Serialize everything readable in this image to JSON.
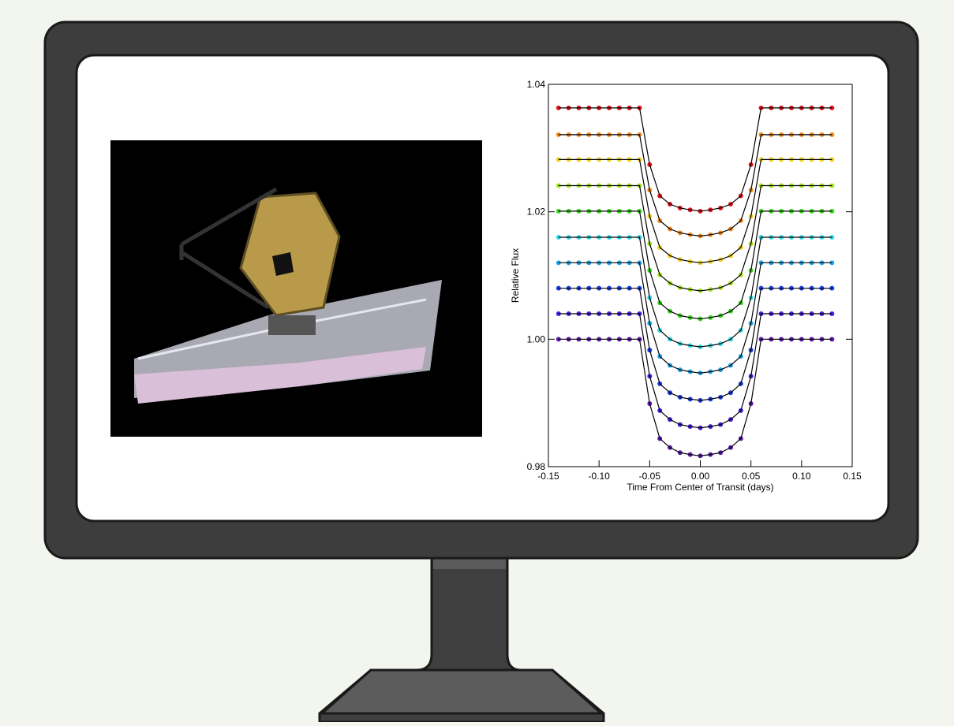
{
  "chart_data": {
    "type": "line",
    "xlabel": "Time From Center of Transit (days)",
    "ylabel": "Relative Flux",
    "xlim": [
      -0.15,
      0.15
    ],
    "ylim": [
      0.98,
      1.04
    ],
    "xticks": [
      -0.15,
      {
        "value": -0.1,
        "label": "-0.10"
      },
      -0.05,
      {
        "value": 0,
        "label": "0.00"
      },
      0.05,
      {
        "value": 0.1,
        "label": "0.10"
      },
      0.15
    ],
    "yticks": [
      0.98,
      {
        "value": 1,
        "label": "1.00"
      },
      1.02,
      1.04
    ],
    "x": [
      -0.14,
      -0.13,
      -0.12,
      -0.11,
      -0.1,
      -0.09,
      -0.08,
      -0.07,
      -0.06,
      -0.05,
      -0.04,
      -0.03,
      -0.02,
      -0.01,
      0,
      0.01,
      0.02,
      0.03,
      0.04,
      0.05,
      0.06,
      0.07,
      0.08,
      0.09,
      0.1,
      0.11,
      0.12,
      0.13
    ],
    "line_color": "#000000",
    "series": [
      {
        "color": "#e8141c",
        "values": [
          1.0363,
          1.0363,
          1.0363,
          1.0363,
          1.0363,
          1.0363,
          1.0363,
          1.0363,
          1.0363,
          1.0274,
          1.0225,
          1.0212,
          1.0206,
          1.0203,
          1.0201,
          1.0203,
          1.0206,
          1.0212,
          1.0225,
          1.0274,
          1.0363,
          1.0363,
          1.0363,
          1.0363,
          1.0363,
          1.0363,
          1.0363,
          1.0363
        ]
      },
      {
        "color": "#f28a1c",
        "values": [
          1.0321,
          1.0321,
          1.0321,
          1.0321,
          1.0321,
          1.0321,
          1.0321,
          1.0321,
          1.0321,
          1.0234,
          1.0186,
          1.0173,
          1.0167,
          1.0164,
          1.0162,
          1.0164,
          1.0167,
          1.0173,
          1.0186,
          1.0234,
          1.0321,
          1.0321,
          1.0321,
          1.0321,
          1.0321,
          1.0321,
          1.0321,
          1.0321
        ]
      },
      {
        "color": "#f2d21a",
        "values": [
          1.0282,
          1.0282,
          1.0282,
          1.0282,
          1.0282,
          1.0282,
          1.0282,
          1.0282,
          1.0282,
          1.0193,
          1.0144,
          1.0131,
          1.0125,
          1.0122,
          1.012,
          1.0122,
          1.0125,
          1.0131,
          1.0144,
          1.0193,
          1.0282,
          1.0282,
          1.0282,
          1.0282,
          1.0282,
          1.0282,
          1.0282,
          1.0282
        ]
      },
      {
        "color": "#a6e41a",
        "values": [
          1.0241,
          1.0241,
          1.0241,
          1.0241,
          1.0241,
          1.0241,
          1.0241,
          1.0241,
          1.0241,
          1.015,
          1.0101,
          1.0088,
          1.0081,
          1.0078,
          1.0076,
          1.0078,
          1.0081,
          1.0088,
          1.0101,
          1.015,
          1.0241,
          1.0241,
          1.0241,
          1.0241,
          1.0241,
          1.0241,
          1.0241,
          1.0241
        ]
      },
      {
        "color": "#3ad61c",
        "values": [
          1.0201,
          1.0201,
          1.0201,
          1.0201,
          1.0201,
          1.0201,
          1.0201,
          1.0201,
          1.0201,
          1.0108,
          1.0057,
          1.0044,
          1.0037,
          1.0034,
          1.0032,
          1.0034,
          1.0037,
          1.0044,
          1.0057,
          1.0108,
          1.0201,
          1.0201,
          1.0201,
          1.0201,
          1.0201,
          1.0201,
          1.0201,
          1.0201
        ]
      },
      {
        "color": "#2fd8e8",
        "values": [
          1.016,
          1.016,
          1.016,
          1.016,
          1.016,
          1.016,
          1.016,
          1.016,
          1.016,
          1.0065,
          1.0014,
          1.0,
          0.9993,
          0.999,
          0.9988,
          0.999,
          0.9993,
          1.0,
          1.0014,
          1.0065,
          1.016,
          1.016,
          1.016,
          1.016,
          1.016,
          1.016,
          1.016,
          1.016
        ]
      },
      {
        "color": "#1fa6e8",
        "values": [
          1.012,
          1.012,
          1.012,
          1.012,
          1.012,
          1.012,
          1.012,
          1.012,
          1.012,
          1.0025,
          0.9973,
          0.9959,
          0.9952,
          0.9949,
          0.9947,
          0.9949,
          0.9952,
          0.9959,
          0.9973,
          1.0025,
          1.012,
          1.012,
          1.012,
          1.012,
          1.012,
          1.012,
          1.012,
          1.012
        ]
      },
      {
        "color": "#1a3ee0",
        "values": [
          1.008,
          1.008,
          1.008,
          1.008,
          1.008,
          1.008,
          1.008,
          1.008,
          1.008,
          0.9983,
          0.993,
          0.9916,
          0.9909,
          0.9906,
          0.9904,
          0.9906,
          0.9909,
          0.9916,
          0.993,
          0.9983,
          1.008,
          1.008,
          1.008,
          1.008,
          1.008,
          1.008,
          1.008,
          1.008
        ]
      },
      {
        "color": "#4a1ee0",
        "values": [
          1.004,
          1.004,
          1.004,
          1.004,
          1.004,
          1.004,
          1.004,
          1.004,
          1.004,
          0.9942,
          0.9888,
          0.9874,
          0.9866,
          0.9863,
          0.9861,
          0.9863,
          0.9866,
          0.9874,
          0.9888,
          0.9942,
          1.004,
          1.004,
          1.004,
          1.004,
          1.004,
          1.004,
          1.004,
          1.004
        ]
      },
      {
        "color": "#5a1aa8",
        "values": [
          1.0,
          1.0,
          1.0,
          1.0,
          1.0,
          1.0,
          1.0,
          1.0,
          1.0,
          0.9899,
          0.9844,
          0.983,
          0.9822,
          0.9819,
          0.9817,
          0.9819,
          0.9822,
          0.983,
          0.9844,
          0.9899,
          1.0,
          1.0,
          1.0,
          1.0,
          1.0,
          1.0,
          1.0,
          1.0
        ]
      }
    ]
  }
}
